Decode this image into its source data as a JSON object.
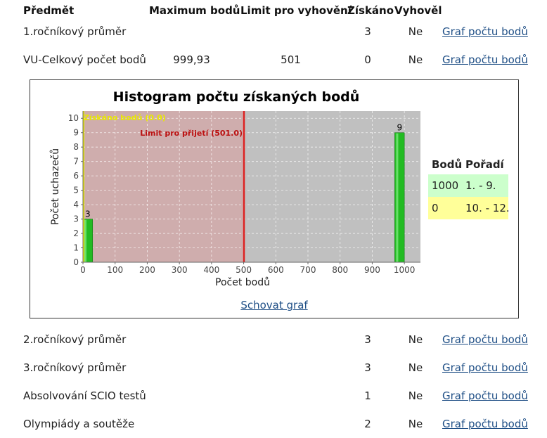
{
  "table": {
    "headers": {
      "subject": "Předmět",
      "max_points": "Maximum bodů",
      "limit": "Limit pro vyhovění",
      "obtained": "Získáno",
      "passed": "Vyhověl"
    },
    "rows_top": [
      {
        "subject": "1.ročníkový průměr",
        "max_points": "",
        "limit": "",
        "obtained": "3",
        "passed": "Ne",
        "link": "Graf počtu bodů"
      },
      {
        "subject": "VU-Celkový počet bodů",
        "max_points": "999,93",
        "limit": "501",
        "obtained": "0",
        "passed": "Ne",
        "link": "Graf počtu bodů"
      }
    ],
    "rows_bottom": [
      {
        "subject": "2.ročníkový průměr",
        "obtained": "3",
        "passed": "Ne",
        "link": "Graf počtu bodů"
      },
      {
        "subject": "3.ročníkový průměr",
        "obtained": "3",
        "passed": "Ne",
        "link": "Graf počtu bodů"
      },
      {
        "subject": "Absolvování SCIO testů",
        "obtained": "1",
        "passed": "Ne",
        "link": "Graf počtu bodů"
      },
      {
        "subject": "Olympiády a soutěže",
        "obtained": "2",
        "passed": "Ne",
        "link": "Graf počtu bodů"
      }
    ]
  },
  "chart_panel": {
    "hide_link": "Schovat graf",
    "ranking": {
      "header_points": "Bodů",
      "header_rank": "Pořadí",
      "rows": [
        {
          "points": "1000",
          "rank": "1. - 9.",
          "color": "#ccffcc"
        },
        {
          "points": "0",
          "rank": "10. - 12.",
          "color": "#ffff99"
        }
      ]
    }
  },
  "chart_data": {
    "type": "bar",
    "title": "Histogram počtu získaných bodů",
    "xlabel": "Počet bodů",
    "ylabel": "Počet uchazečů",
    "xlim": [
      0,
      1050
    ],
    "ylim": [
      0,
      10.5
    ],
    "xticks": [
      "0",
      "100",
      "200",
      "300",
      "400",
      "500",
      "600",
      "700",
      "800",
      "900",
      "1000"
    ],
    "yticks": [
      "0",
      "1",
      "2",
      "3",
      "4",
      "5",
      "6",
      "7",
      "8",
      "9",
      "10"
    ],
    "grid": true,
    "bars": [
      {
        "x": 0,
        "width": 30,
        "value": 3,
        "label": "3"
      },
      {
        "x": 970,
        "width": 30,
        "value": 9,
        "label": "9"
      }
    ],
    "markers": [
      {
        "x": 0,
        "label": "Získáno bodů (0.0)",
        "color": "#e8e800"
      },
      {
        "x": 501,
        "label": "Limit pro přijetí (501.0)",
        "color": "#dd2222"
      }
    ],
    "colors": {
      "below_limit": "#cfadad",
      "above_limit": "#c0c0c0",
      "bar": "#22bb22"
    }
  }
}
